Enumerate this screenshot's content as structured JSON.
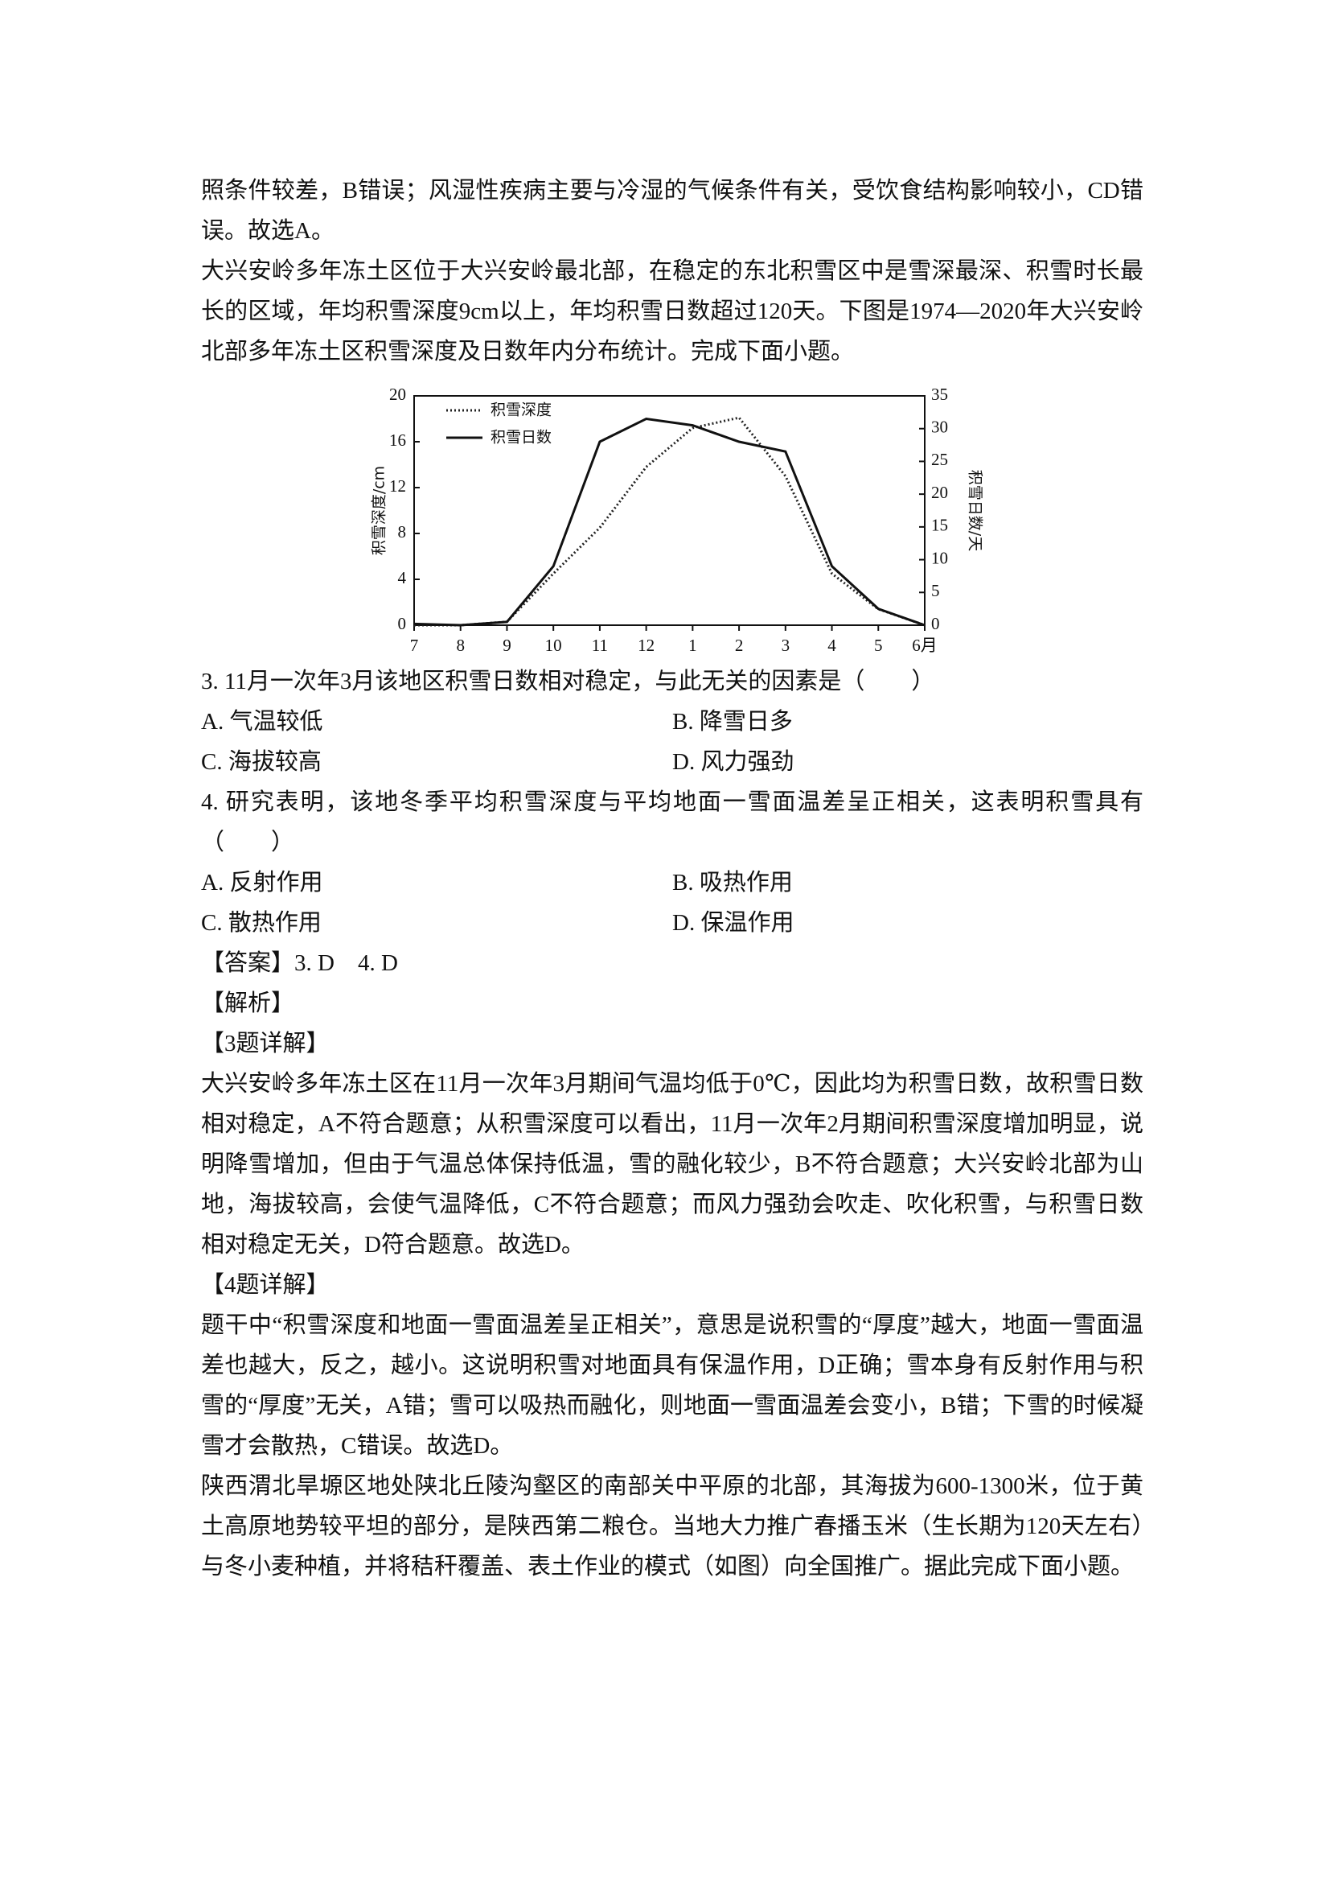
{
  "before": [
    "照条件较差，B错误；风湿性疾病主要与冷湿的气候条件有关，受饮食结构影响较小，CD错误。故选A。",
    "大兴安岭多年冻土区位于大兴安岭最北部，在稳定的东北积雪区中是雪深最深、积雪时长最长的区域，年均积雪深度9cm以上，年均积雪日数超过120天。下图是1974—2020年大兴安岭北部多年冻土区积雪深度及日数年内分布统计。完成下面小题。"
  ],
  "chart_data": {
    "type": "line",
    "categories": [
      "7",
      "8",
      "9",
      "10",
      "11",
      "12",
      "1",
      "2",
      "3",
      "4",
      "5",
      "6月"
    ],
    "y_label": "积雪深度/cm",
    "y2_label": "积雪日数/天",
    "ylim": [
      0,
      20
    ],
    "yticks": [
      0,
      4,
      8,
      12,
      16,
      20
    ],
    "y2lim": [
      0,
      35
    ],
    "y2ticks": [
      0,
      5,
      10,
      15,
      20,
      25,
      30,
      35
    ],
    "legend": "upper-left",
    "series": [
      {
        "name": "积雪深度",
        "color": "#222",
        "style": "dotted",
        "values": [
          0,
          0,
          0.3,
          4.5,
          8.5,
          13.8,
          17.2,
          18.1,
          13,
          4.5,
          1.4,
          0
        ]
      },
      {
        "name": "积雪日数",
        "color": "#111",
        "style": "solid",
        "axis": "y2",
        "values": [
          0.2,
          0,
          0.5,
          9,
          28,
          31.5,
          30.5,
          28,
          26.5,
          9,
          2.5,
          0
        ]
      }
    ]
  },
  "questions": [
    {
      "stem": "3. 11月一次年3月该地区积雪日数相对稳定，与此无关的因素是（　　）",
      "options": [
        "A. 气温较低",
        "B. 降雪日多",
        "C. 海拔较高",
        "D. 风力强劲"
      ]
    },
    {
      "stem": "4. 研究表明，该地冬季平均积雪深度与平均地面一雪面温差呈正相关，这表明积雪具有（　　）",
      "options": [
        "A. 反射作用",
        "B. 吸热作用",
        "C. 散热作用",
        "D. 保温作用"
      ]
    }
  ],
  "after": [
    "【答案】3. D　4. D",
    "【解析】",
    "【3题详解】",
    "大兴安岭多年冻土区在11月一次年3月期间气温均低于0℃，因此均为积雪日数，故积雪日数相对稳定，A不符合题意；从积雪深度可以看出，11月一次年2月期间积雪深度增加明显，说明降雪增加，但由于气温总体保持低温，雪的融化较少，B不符合题意；大兴安岭北部为山地，海拔较高，会使气温降低，C不符合题意；而风力强劲会吹走、吹化积雪，与积雪日数相对稳定无关，D符合题意。故选D。",
    "【4题详解】",
    "题干中“积雪深度和地面一雪面温差呈正相关”，意思是说积雪的“厚度”越大，地面一雪面温差也越大，反之，越小。这说明积雪对地面具有保温作用，D正确；雪本身有反射作用与积雪的“厚度”无关，A错；雪可以吸热而融化，则地面一雪面温差会变小，B错；下雪的时候凝雪才会散热，C错误。故选D。",
    "陕西渭北旱塬区地处陕北丘陵沟壑区的南部关中平原的北部，其海拔为600-1300米，位于黄土高原地势较平坦的部分，是陕西第二粮仓。当地大力推广春播玉米（生长期为120天左右）与冬小麦种植，并将秸秆覆盖、表土作业的模式（如图）向全国推广。据此完成下面小题。"
  ]
}
